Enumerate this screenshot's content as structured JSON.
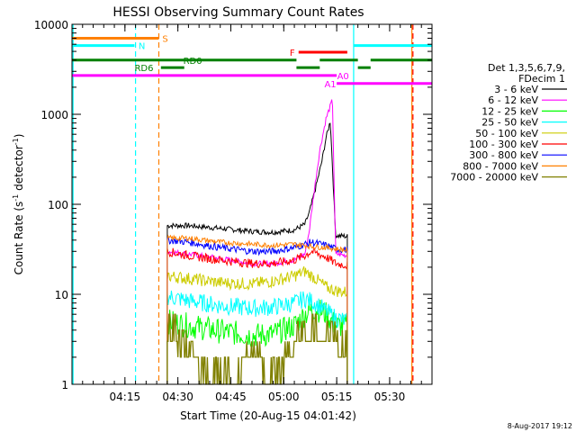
{
  "chart_data": {
    "type": "line",
    "title": "HESSI Observing Summary Count Rates",
    "xlabel": "Start Time (20-Aug-15 04:01:42)",
    "ylabel": "Count Rate (s⁻¹ detector⁻¹)",
    "ylabel_parts": [
      "Count Rate (s",
      "-1",
      " detector",
      "-1",
      ")"
    ],
    "yscale": "log",
    "xlim": [
      4.0,
      5.7
    ],
    "ylim": [
      1,
      10000
    ],
    "x_ticks": [
      {
        "value": 4.25,
        "label": "04:15"
      },
      {
        "value": 4.5,
        "label": "04:30"
      },
      {
        "value": 4.75,
        "label": "04:45"
      },
      {
        "value": 5.0,
        "label": "05:00"
      },
      {
        "value": 5.25,
        "label": "05:15"
      },
      {
        "value": 5.5,
        "label": "05:30"
      }
    ],
    "y_ticks": [
      {
        "value": 1,
        "label": "1"
      },
      {
        "value": 10,
        "label": "10"
      },
      {
        "value": 100,
        "label": "100"
      },
      {
        "value": 1000,
        "label": "1000"
      },
      {
        "value": 10000,
        "label": "10000"
      }
    ],
    "legend": {
      "header": [
        "Det 1,3,5,6,7,9,",
        "FDecim 1"
      ],
      "entries": [
        {
          "label": "3 - 6 keV",
          "color": "#000000"
        },
        {
          "label": "6 - 12 keV",
          "color": "#ff00ff"
        },
        {
          "label": "12 - 25 keV",
          "color": "#00ff00"
        },
        {
          "label": "25 - 50 keV",
          "color": "#00ffff"
        },
        {
          "label": "50 - 100 keV",
          "color": "#cccc00"
        },
        {
          "label": "100 - 300 keV",
          "color": "#ff0000"
        },
        {
          "label": "300 - 800 keV",
          "color": "#0000ff"
        },
        {
          "label": "800 - 7000 keV",
          "color": "#ff8000"
        },
        {
          "label": "7000 - 20000 keV",
          "color": "#808000"
        }
      ]
    },
    "series": [
      {
        "name": "3 - 6 keV",
        "color": "#000000",
        "noise": 0.03,
        "points": [
          [
            4.45,
            58
          ],
          [
            4.55,
            58
          ],
          [
            4.7,
            54
          ],
          [
            4.85,
            50
          ],
          [
            4.95,
            49
          ],
          [
            5.05,
            52
          ],
          [
            5.1,
            60
          ],
          [
            5.12,
            80
          ],
          [
            5.15,
            150
          ],
          [
            5.18,
            300
          ],
          [
            5.2,
            550
          ],
          [
            5.22,
            850
          ],
          [
            5.245,
            45
          ],
          [
            5.3,
            44
          ]
        ]
      },
      {
        "name": "6 - 12 keV",
        "color": "#ff00ff",
        "noise": 0.03,
        "points": [
          [
            4.45,
            30
          ],
          [
            4.55,
            28
          ],
          [
            4.7,
            25
          ],
          [
            4.85,
            22
          ],
          [
            4.95,
            22
          ],
          [
            5.05,
            24
          ],
          [
            5.1,
            28
          ],
          [
            5.12,
            50
          ],
          [
            5.14,
            120
          ],
          [
            5.17,
            400
          ],
          [
            5.2,
            900
          ],
          [
            5.23,
            1450
          ],
          [
            5.245,
            28
          ],
          [
            5.3,
            27
          ]
        ]
      },
      {
        "name": "12 - 25 keV",
        "color": "#00ff00",
        "noise": 0.14,
        "points": [
          [
            4.45,
            5.0
          ],
          [
            4.55,
            4.5
          ],
          [
            4.7,
            3.9
          ],
          [
            4.85,
            3.5
          ],
          [
            4.95,
            3.6
          ],
          [
            5.05,
            4.5
          ],
          [
            5.1,
            6.0
          ],
          [
            5.15,
            7.0
          ],
          [
            5.2,
            6.0
          ],
          [
            5.245,
            4.5
          ],
          [
            5.3,
            4.4
          ]
        ]
      },
      {
        "name": "25 - 50 keV",
        "color": "#00ffff",
        "noise": 0.1,
        "points": [
          [
            4.45,
            9.5
          ],
          [
            4.55,
            8.5
          ],
          [
            4.7,
            7.5
          ],
          [
            4.85,
            7.0
          ],
          [
            4.95,
            7.2
          ],
          [
            5.05,
            8.0
          ],
          [
            5.1,
            9.0
          ],
          [
            5.15,
            8.0
          ],
          [
            5.2,
            6.5
          ],
          [
            5.245,
            5.5
          ],
          [
            5.3,
            5.0
          ]
        ]
      },
      {
        "name": "50 - 100 keV",
        "color": "#cccc00",
        "noise": 0.07,
        "points": [
          [
            4.45,
            16
          ],
          [
            4.55,
            15
          ],
          [
            4.7,
            13.5
          ],
          [
            4.85,
            13
          ],
          [
            4.95,
            14
          ],
          [
            5.05,
            16
          ],
          [
            5.1,
            18
          ],
          [
            5.15,
            15
          ],
          [
            5.2,
            12
          ],
          [
            5.245,
            11
          ],
          [
            5.3,
            10.5
          ]
        ]
      },
      {
        "name": "100 - 300 keV",
        "color": "#ff0000",
        "noise": 0.05,
        "points": [
          [
            4.45,
            30
          ],
          [
            4.55,
            27
          ],
          [
            4.7,
            24
          ],
          [
            4.85,
            22
          ],
          [
            4.95,
            22
          ],
          [
            5.05,
            24
          ],
          [
            5.1,
            27
          ],
          [
            5.13,
            30
          ],
          [
            5.2,
            26
          ],
          [
            5.245,
            22
          ],
          [
            5.3,
            21
          ]
        ]
      },
      {
        "name": "300 - 800 keV",
        "color": "#0000ff",
        "noise": 0.04,
        "points": [
          [
            4.45,
            40
          ],
          [
            4.55,
            38
          ],
          [
            4.7,
            33
          ],
          [
            4.85,
            30
          ],
          [
            4.95,
            30
          ],
          [
            5.05,
            33
          ],
          [
            5.1,
            36
          ],
          [
            5.13,
            38
          ],
          [
            5.2,
            35
          ],
          [
            5.245,
            32
          ],
          [
            5.3,
            31
          ]
        ]
      },
      {
        "name": "800 - 7000 keV",
        "color": "#ff8000",
        "noise": 0.03,
        "points": [
          [
            4.45,
            42
          ],
          [
            4.55,
            42
          ],
          [
            4.7,
            38
          ],
          [
            4.85,
            36
          ],
          [
            4.95,
            35
          ],
          [
            5.05,
            36
          ],
          [
            5.1,
            35
          ],
          [
            5.13,
            34
          ],
          [
            5.2,
            33
          ],
          [
            5.245,
            32
          ],
          [
            5.3,
            31
          ]
        ]
      },
      {
        "name": "7000 - 20000 keV",
        "color": "#808000",
        "noise": 0.0,
        "step": true,
        "points": [
          [
            4.45,
            3.0
          ],
          [
            4.5,
            2.0
          ],
          [
            4.55,
            1.5
          ],
          [
            4.6,
            1.0
          ],
          [
            4.75,
            1.0
          ],
          [
            4.8,
            1.5
          ],
          [
            4.9,
            1.2
          ],
          [
            5.0,
            1.5
          ],
          [
            5.05,
            2.5
          ],
          [
            5.1,
            3.0
          ],
          [
            5.15,
            3.0
          ],
          [
            5.2,
            2.5
          ],
          [
            5.25,
            2.0
          ],
          [
            5.3,
            1.8
          ]
        ]
      }
    ],
    "status_bars": [
      {
        "label": "S",
        "color": "#ff8000",
        "level": 7000,
        "segments": [
          [
            4.0,
            4.41
          ]
        ],
        "label_at": [
          4.44,
          7000
        ]
      },
      {
        "label": "N",
        "color": "#00ffff",
        "level": 5800,
        "segments": [
          [
            4.0,
            4.295
          ]
        ],
        "label_at": [
          4.33,
          5800
        ]
      },
      {
        "label": "F",
        "color": "#ff0000",
        "level": 4900,
        "segments": [
          [
            5.07,
            5.3
          ]
        ],
        "label_at": [
          5.04,
          4900
        ]
      },
      {
        "label": "N",
        "color": "#00ffff",
        "level": 5800,
        "segments": [
          [
            5.33,
            5.7
          ]
        ],
        "label_at": null
      },
      {
        "label": "RD0",
        "color": "#008000",
        "level": 4000,
        "segments": [
          [
            4.0,
            5.06
          ],
          [
            5.17,
            5.35
          ],
          [
            5.41,
            5.7
          ]
        ],
        "label_at": [
          4.57,
          4000
        ]
      },
      {
        "label": "RD6",
        "color": "#008000",
        "level": 3300,
        "segments": [
          [
            4.42,
            4.53
          ],
          [
            5.06,
            5.17
          ],
          [
            5.35,
            5.41
          ]
        ],
        "label_at": [
          4.34,
          3300
        ]
      },
      {
        "label": "A0",
        "color": "#ff00ff",
        "level": 2700,
        "segments": [
          [
            4.0,
            5.25
          ]
        ],
        "label_at": [
          5.28,
          2700
        ]
      },
      {
        "label": "A1",
        "color": "#ff00ff",
        "level": 2200,
        "segments": [
          [
            5.25,
            5.7
          ]
        ],
        "label_at": [
          5.22,
          2200
        ]
      }
    ],
    "vlines": [
      {
        "x": 4.005,
        "color": "#00ffff",
        "style": "solid"
      },
      {
        "x": 4.3,
        "color": "#00ffff",
        "style": "dashed"
      },
      {
        "x": 4.41,
        "color": "#ff8000",
        "style": "dashed"
      },
      {
        "x": 5.33,
        "color": "#00ffff",
        "style": "solid"
      },
      {
        "x": 5.605,
        "color": "#ff8000",
        "style": "solid"
      },
      {
        "x": 5.61,
        "color": "#ff0000",
        "style": "dashed"
      }
    ],
    "footer": "8-Aug-2017 19:12"
  }
}
